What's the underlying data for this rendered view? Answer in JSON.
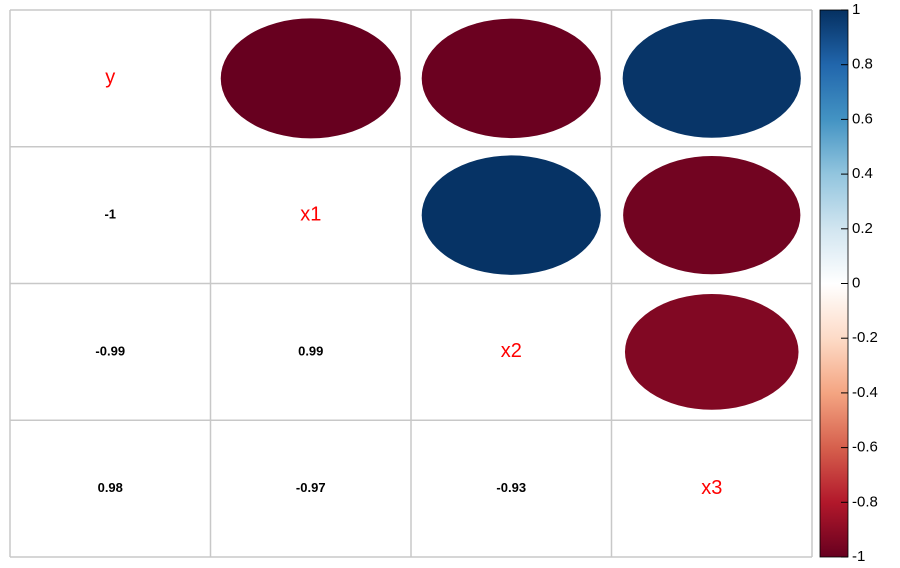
{
  "chart_data": {
    "type": "corrplot",
    "variables": [
      "y",
      "x1",
      "x2",
      "x3"
    ],
    "correlations": [
      [
        -1
      ],
      [
        -0.99,
        0.99
      ],
      [
        0.98,
        -0.97,
        -0.93
      ]
    ],
    "label_color": "#FF0000",
    "colorbar": {
      "lim": [
        -1,
        1
      ],
      "ticks": [
        1,
        0.8,
        0.6,
        0.4,
        0.2,
        0,
        -0.2,
        -0.4,
        -0.6,
        -0.8,
        -1
      ],
      "colors": [
        "#67001F",
        "#B2182B",
        "#D6604D",
        "#F4A582",
        "#FDDBC7",
        "#FFFFFF",
        "#D1E5F0",
        "#92C5DE",
        "#4393C3",
        "#2166AC",
        "#053061"
      ]
    }
  }
}
